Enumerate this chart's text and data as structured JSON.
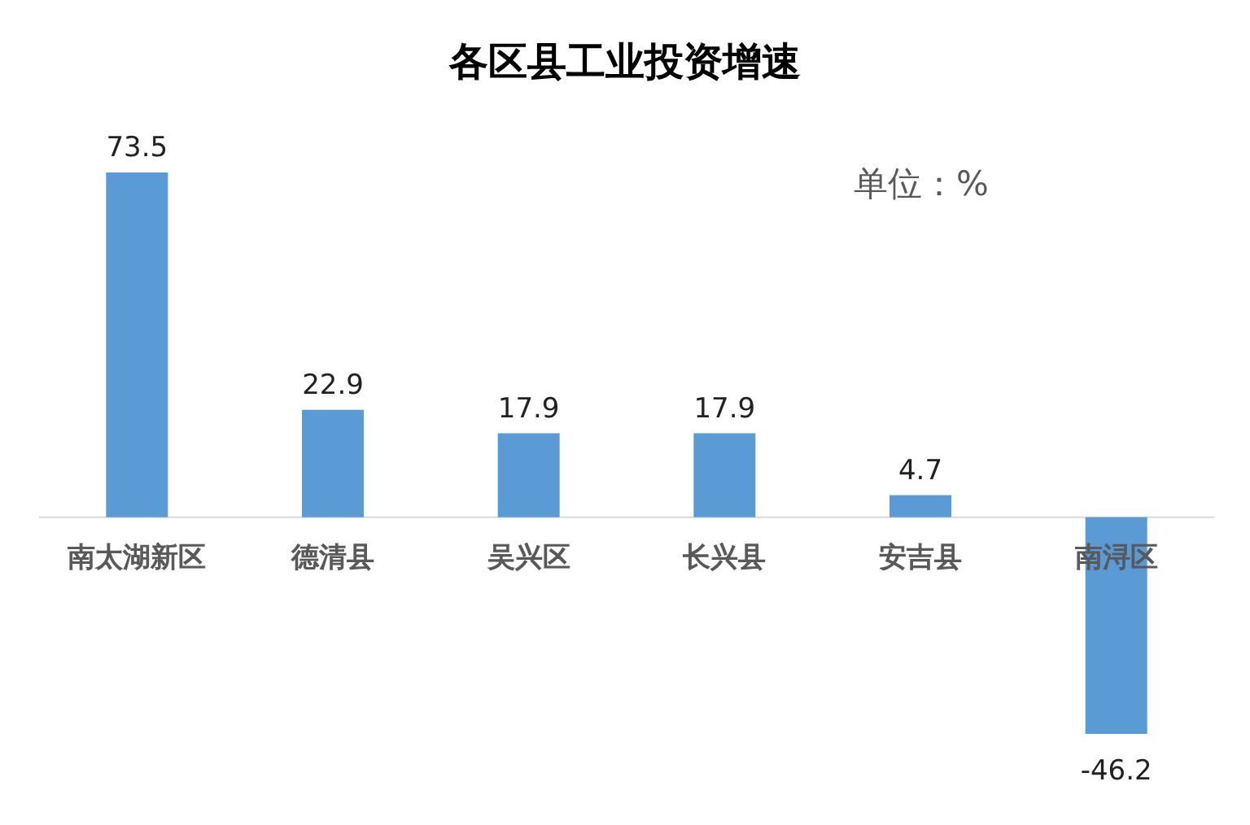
{
  "chart_data": {
    "type": "bar",
    "title": "各区县工业投资增速",
    "categories": [
      "南太湖新区",
      "德清县",
      "吴兴区",
      "长兴县",
      "安吉县",
      "南浔区"
    ],
    "values": [
      73.5,
      22.9,
      17.9,
      17.9,
      4.7,
      -46.2
    ],
    "color": "#5b9bd5",
    "data_labels": true,
    "annotations": [
      "单位：%"
    ]
  }
}
